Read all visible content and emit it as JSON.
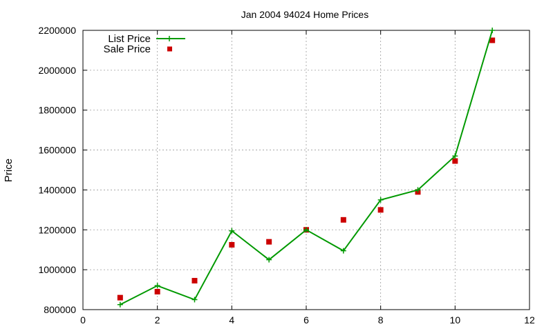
{
  "chart_data": {
    "type": "line",
    "title": "Jan 2004 94024 Home Prices",
    "xlabel": "",
    "ylabel": "Price",
    "xlim": [
      0,
      12
    ],
    "ylim": [
      800000,
      2200000
    ],
    "xticks": [
      0,
      2,
      4,
      6,
      8,
      10,
      12
    ],
    "yticks": [
      800000,
      1000000,
      1200000,
      1400000,
      1600000,
      1800000,
      2000000,
      2200000
    ],
    "grid": true,
    "legend_position": "top-left",
    "series": [
      {
        "name": "List Price",
        "style": "line-with-plus-markers",
        "color": "#009900",
        "x": [
          1,
          2,
          3,
          4,
          5,
          6,
          7,
          8,
          9,
          10,
          11
        ],
        "y": [
          825000,
          920000,
          850000,
          1195000,
          1050000,
          1200000,
          1095000,
          1350000,
          1400000,
          1570000,
          2200000
        ]
      },
      {
        "name": "Sale Price",
        "style": "square-markers",
        "color": "#cc0000",
        "x": [
          1,
          2,
          3,
          4,
          5,
          6,
          7,
          8,
          9,
          10,
          11
        ],
        "y": [
          860000,
          890000,
          945000,
          1125000,
          1140000,
          1200000,
          1250000,
          1300000,
          1390000,
          1545000,
          2150000
        ]
      }
    ]
  }
}
